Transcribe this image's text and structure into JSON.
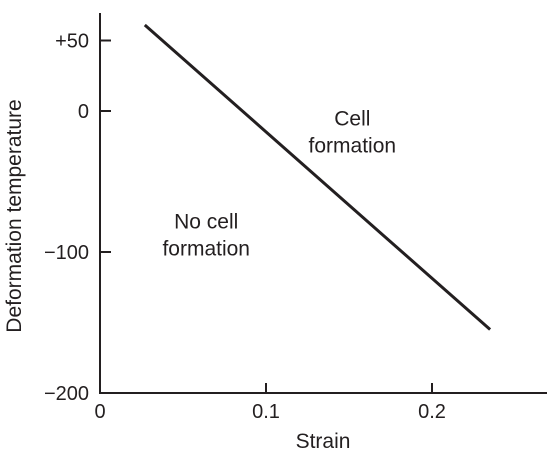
{
  "chart_data": {
    "type": "line",
    "title": "",
    "xlabel": "Strain",
    "ylabel": "Deformation temperature",
    "xlim": [
      0,
      0.25
    ],
    "ylim": [
      -200,
      70
    ],
    "x_ticks": [
      {
        "value": 0,
        "label": "0"
      },
      {
        "value": 0.1,
        "label": "0.1"
      },
      {
        "value": 0.2,
        "label": "0.2"
      }
    ],
    "y_ticks": [
      {
        "value": 50,
        "label": "+50"
      },
      {
        "value": 0,
        "label": "0"
      },
      {
        "value": -100,
        "label": "−100"
      },
      {
        "value": -200,
        "label": "−200"
      }
    ],
    "series": [
      {
        "x": [
          0.027,
          0.235
        ],
        "y": [
          61,
          -155
        ]
      }
    ],
    "annotations": [
      {
        "lines": [
          "Cell",
          "formation"
        ],
        "x": 0.152,
        "y": -13
      },
      {
        "lines": [
          "No cell",
          "formation"
        ],
        "x": 0.064,
        "y": -86
      }
    ],
    "grid": false,
    "line_color": "#231f20"
  }
}
